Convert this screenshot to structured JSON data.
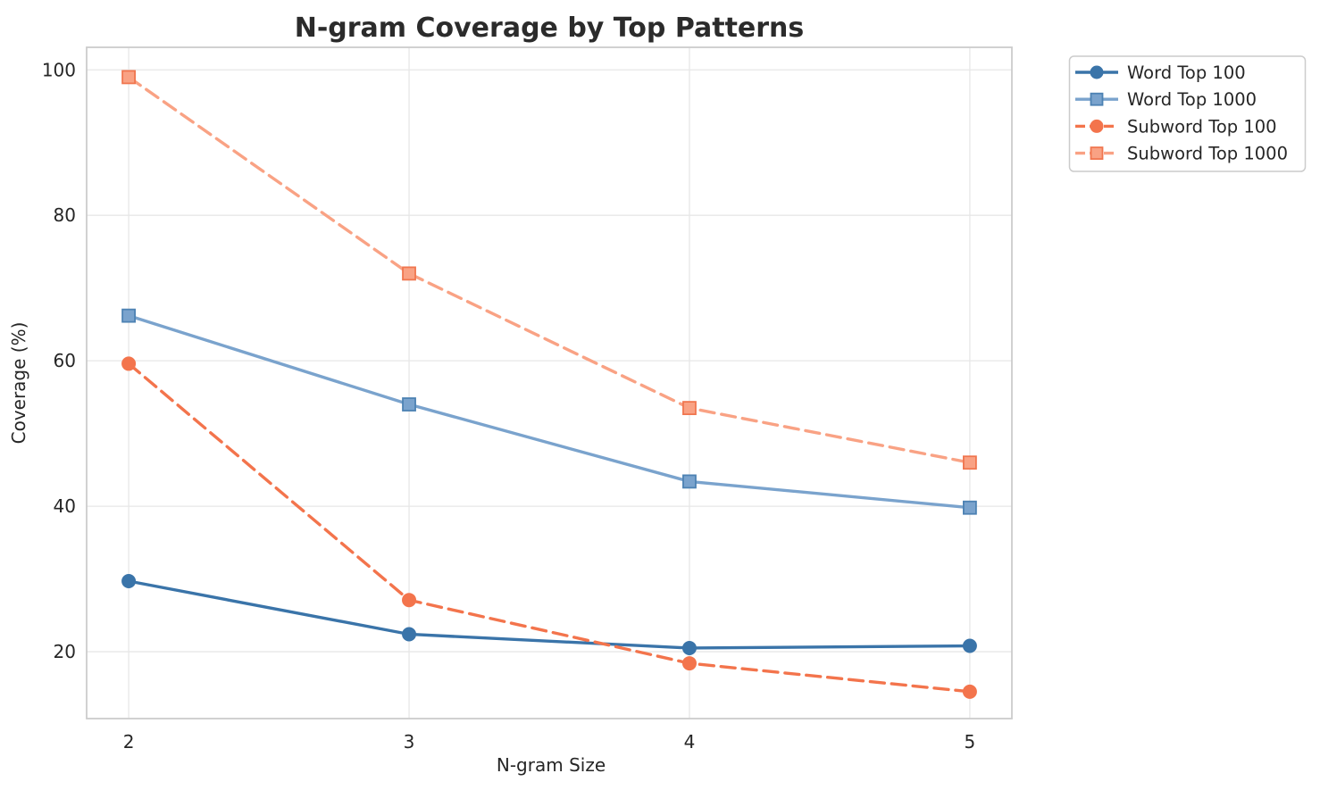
{
  "title": "N-gram Coverage by Top Patterns",
  "chart_data": {
    "type": "line",
    "title": "N-gram Coverage by Top Patterns",
    "xlabel": "N-gram Size",
    "ylabel": "Coverage (%)",
    "x": [
      2,
      3,
      4,
      5
    ],
    "xticks": [
      "2",
      "3",
      "4",
      "5"
    ],
    "yticks": [
      "20",
      "40",
      "60",
      "80",
      "100"
    ],
    "ytick_values": [
      20,
      40,
      60,
      80,
      100
    ],
    "xlim": [
      1.85,
      5.15
    ],
    "ylim": [
      10.8,
      103.1
    ],
    "grid": true,
    "grid_color": "#e7e7e7",
    "spine_color": "#cccccc",
    "text_color": "#262626",
    "background_color": "#ffffff",
    "legend_position": "upper-right-outside",
    "series": [
      {
        "name": "Word Top 100",
        "values": [
          29.7,
          22.4,
          20.5,
          20.8
        ],
        "color": "#3a74a9",
        "marker": "circle",
        "marker_edge": "#3a74a9",
        "linestyle": "solid"
      },
      {
        "name": "Word Top 1000",
        "values": [
          66.2,
          54.0,
          43.4,
          39.8
        ],
        "color": "#7aa3cd",
        "marker": "square",
        "marker_edge": "#4d82b3",
        "linestyle": "solid"
      },
      {
        "name": "Subword Top 100",
        "values": [
          59.6,
          27.1,
          18.4,
          14.5
        ],
        "color": "#f3744c",
        "marker": "circle",
        "marker_edge": "#f3744c",
        "linestyle": "dashed"
      },
      {
        "name": "Subword Top 1000",
        "values": [
          99.0,
          72.0,
          53.5,
          46.0
        ],
        "color": "#f9a284",
        "marker": "square",
        "marker_edge": "#f0764f",
        "linestyle": "dashed"
      }
    ]
  }
}
